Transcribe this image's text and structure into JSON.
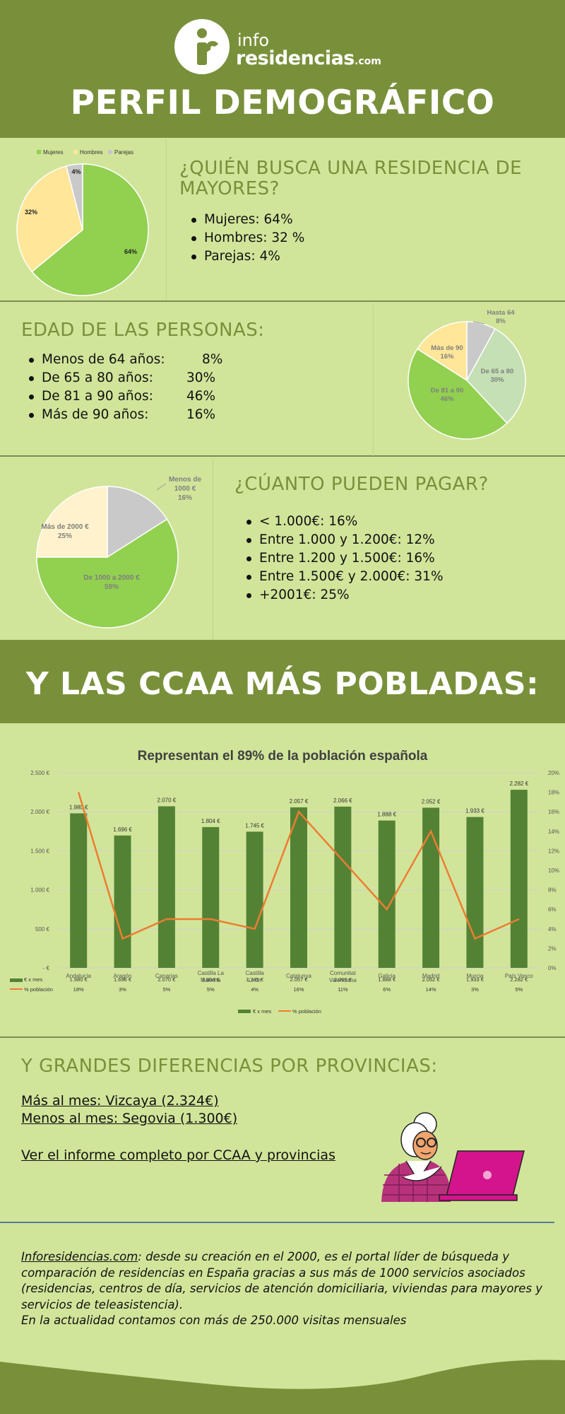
{
  "logo": {
    "info": "info",
    "name": "residencias",
    "com": ".com"
  },
  "title": "PERFIL DEMOGRÁFICO",
  "section1": {
    "title": "¿QUIÉN BUSCA UNA RESIDENCIA DE MAYORES?",
    "items": [
      "Mujeres: 64%",
      "Hombres: 32 %",
      "Parejas: 4%"
    ],
    "chart": {
      "legend": [
        "Mujeres",
        "Hombres",
        "Parejas"
      ],
      "labels": [
        "64%",
        "32%",
        "4%"
      ],
      "values": [
        64,
        32,
        4
      ],
      "colors": [
        "#92d050",
        "#ffe699",
        "#c9c9c9"
      ]
    }
  },
  "section2": {
    "title": "EDAD DE LAS PERSONAS:",
    "items": [
      {
        "label": "Menos de 64 años:",
        "value": "8%"
      },
      {
        "label": "De 65 a 80 años:",
        "value": "30%"
      },
      {
        "label": "De 81 a 90 años:",
        "value": "46%"
      },
      {
        "label": "Más de 90 años:",
        "value": "16%"
      }
    ],
    "chart": {
      "labels": [
        {
          "name": "Hasta 64",
          "pct": "8%"
        },
        {
          "name": "De 65 a 80",
          "pct": "30%"
        },
        {
          "name": "De 81 a 90",
          "pct": "46%"
        },
        {
          "name": "Más de 90",
          "pct": "16%"
        }
      ],
      "values": [
        8,
        30,
        46,
        16
      ],
      "colors": [
        "#c9c9c9",
        "#c5e0b4",
        "#92d050",
        "#ffe699"
      ]
    }
  },
  "section3": {
    "title": "¿CÚANTO PUEDEN PAGAR?",
    "items": [
      "< 1.000€:  16%",
      "Entre 1.000 y 1.200€: 12%",
      "Entre 1.200 y 1.500€:  16%",
      "Entre 1.500€ y 2.000€:   31%",
      "+2001€: 25%"
    ],
    "chart": {
      "labels": [
        {
          "name": "Menos de 1000 €",
          "pct": "16%"
        },
        {
          "name": "De 1000 a 2000 €",
          "pct": "59%"
        },
        {
          "name": "Más de 2000 €",
          "pct": "25%"
        }
      ],
      "values": [
        16,
        59,
        25
      ],
      "colors": [
        "#c9c9c9",
        "#92d050",
        "#fff2cc"
      ]
    }
  },
  "banner": "Y LAS CCAA MÁS POBLADAS:",
  "chart_data": {
    "type": "bar",
    "title": "Representan el 89% de la población española",
    "categories": [
      "Andalucía",
      "Aragón",
      "Canarias",
      "Castilla La Mancha",
      "Castilla León",
      "Catalunya",
      "Comunitat Valenciana",
      "Galicia",
      "Madrid",
      "Murcia",
      "País Vasco"
    ],
    "series": [
      {
        "name": "€ x mes",
        "type": "bar",
        "color": "#548235",
        "values": [
          1980,
          1696,
          2070,
          1804,
          1745,
          2057,
          2066,
          1888,
          2052,
          1933,
          2282
        ],
        "labels": [
          "1.980 €",
          "1.696 €",
          "2.070 €",
          "1.804 €",
          "1.745 €",
          "2.057 €",
          "2.066 €",
          "1.888 €",
          "2.052 €",
          "1.933 €",
          "2.282 €"
        ]
      },
      {
        "name": "% población",
        "type": "line",
        "color": "#ed7d31",
        "axis": "right",
        "values": [
          18,
          3,
          5,
          5,
          4,
          16,
          11,
          6,
          14,
          3,
          5
        ],
        "labels": [
          "18%",
          "3%",
          "5%",
          "5%",
          "4%",
          "16%",
          "11%",
          "6%",
          "14%",
          "3%",
          "5%"
        ]
      }
    ],
    "ylim": [
      0,
      2500
    ],
    "yticks": [
      "- €",
      "500 €",
      "1.000 €",
      "1.500 €",
      "2.000 €",
      "2.500 €"
    ],
    "y2lim": [
      0,
      20
    ],
    "y2ticks": [
      "0%",
      "2%",
      "4%",
      "6%",
      "8%",
      "10%",
      "12%",
      "14%",
      "16%",
      "18%",
      "20%"
    ],
    "grid": true,
    "legend_position": "bottom"
  },
  "section4": {
    "title": "Y GRANDES DIFERENCIAS POR PROVINCIAS:",
    "max": "Más al mes:   Vizcaya (2.324€)",
    "min": "Menos al mes:  Segovia (1.300€)",
    "link": "Ver el informe completo por CCAA y provincias"
  },
  "footer": {
    "brand": "Inforesidencias.com",
    "text": ": desde su creación en el 2000, es el portal líder de búsqueda y comparación de residencias en España gracias a sus más de 1000 servicios asociados (residencias, centros de día, servicios de atención domiciliaria, viviendas para mayores y servicios de teleasistencia).",
    "line2": "En la actualidad contamos con más de 250.000 visitas mensuales"
  },
  "colors": {
    "brand_green": "#79903a",
    "background": "#d1e59a",
    "heading": "#79903a"
  }
}
